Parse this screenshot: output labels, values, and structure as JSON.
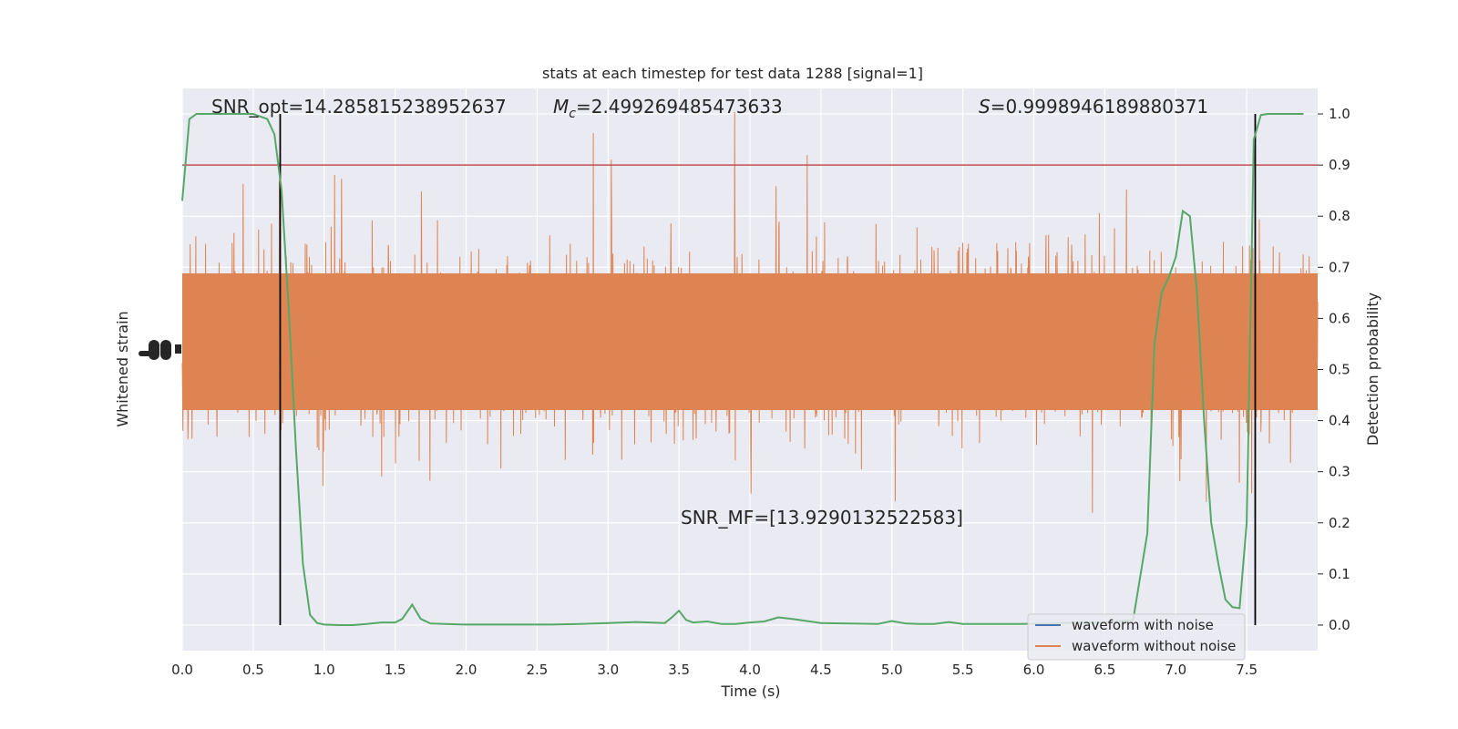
{
  "chart_data": {
    "type": "line",
    "title": "stats at each timestep for test data 1288 [signal=1]",
    "xlabel": "Time (s)",
    "ylabel_left": "Whitened strain",
    "ylabel_right": "Detection probability",
    "xlim": [
      0.0,
      8.0
    ],
    "ylim_right": [
      -0.05,
      1.05
    ],
    "x_ticks": [
      "0.0",
      "0.5",
      "1.0",
      "1.5",
      "2.0",
      "2.5",
      "3.0",
      "3.5",
      "4.0",
      "4.5",
      "5.0",
      "5.5",
      "6.0",
      "6.5",
      "7.0",
      "7.5"
    ],
    "x_tick_values": [
      0.0,
      0.5,
      1.0,
      1.5,
      2.0,
      2.5,
      3.0,
      3.5,
      4.0,
      4.5,
      5.0,
      5.5,
      6.0,
      6.5,
      7.0,
      7.5
    ],
    "y_ticks_right": [
      "0.0",
      "0.1",
      "0.2",
      "0.3",
      "0.4",
      "0.5",
      "0.6",
      "0.7",
      "0.8",
      "0.9",
      "1.0"
    ],
    "y_tick_values_right": [
      0.0,
      0.1,
      0.2,
      0.3,
      0.4,
      0.5,
      0.6,
      0.7,
      0.8,
      0.9,
      1.0
    ],
    "annotations": {
      "snr_opt": "SNR_opt=14.285815238952637",
      "mc": "=2.499269485473633",
      "s": "=0.9998946189880371",
      "snr_mf": "SNR_MF=[13.9290132522583]"
    },
    "threshold": 0.9,
    "vlines": [
      0.69,
      7.56
    ],
    "detection_probability": {
      "x": [
        0.0,
        0.05,
        0.1,
        0.2,
        0.3,
        0.4,
        0.5,
        0.6,
        0.65,
        0.7,
        0.75,
        0.8,
        0.85,
        0.9,
        0.95,
        1.0,
        1.1,
        1.2,
        1.3,
        1.4,
        1.5,
        1.55,
        1.62,
        1.68,
        1.75,
        1.85,
        2.0,
        2.2,
        2.4,
        2.6,
        2.8,
        3.0,
        3.2,
        3.4,
        3.45,
        3.5,
        3.55,
        3.6,
        3.7,
        3.8,
        3.9,
        4.0,
        4.1,
        4.2,
        4.3,
        4.4,
        4.5,
        4.7,
        4.9,
        5.0,
        5.1,
        5.2,
        5.3,
        5.4,
        5.5,
        5.7,
        5.9,
        6.1,
        6.3,
        6.5,
        6.7,
        6.8,
        6.85,
        6.9,
        6.95,
        7.0,
        7.05,
        7.1,
        7.15,
        7.2,
        7.25,
        7.3,
        7.35,
        7.4,
        7.45,
        7.5,
        7.55,
        7.6,
        7.65,
        7.7,
        7.8,
        7.9
      ],
      "y": [
        0.83,
        0.99,
        1.0,
        1.0,
        1.0,
        1.0,
        1.0,
        0.99,
        0.96,
        0.85,
        0.62,
        0.35,
        0.12,
        0.02,
        0.004,
        0.001,
        0.0,
        0.0,
        0.002,
        0.005,
        0.005,
        0.012,
        0.04,
        0.012,
        0.003,
        0.002,
        0.001,
        0.001,
        0.001,
        0.001,
        0.002,
        0.004,
        0.006,
        0.004,
        0.015,
        0.028,
        0.01,
        0.005,
        0.007,
        0.002,
        0.002,
        0.005,
        0.007,
        0.015,
        0.012,
        0.008,
        0.004,
        0.003,
        0.002,
        0.008,
        0.003,
        0.002,
        0.002,
        0.006,
        0.002,
        0.002,
        0.002,
        0.003,
        0.005,
        0.005,
        0.01,
        0.18,
        0.55,
        0.65,
        0.68,
        0.72,
        0.81,
        0.8,
        0.65,
        0.4,
        0.2,
        0.12,
        0.05,
        0.035,
        0.033,
        0.2,
        0.95,
        0.998,
        1.0,
        1.0,
        1.0,
        1.0
      ]
    },
    "series": [
      {
        "name": "waveform with noise",
        "color": "#4c72b0"
      },
      {
        "name": "waveform without noise",
        "color": "#dd8452"
      }
    ],
    "probability_color": "#55a868",
    "threshold_color": "#c44e52",
    "vline_color": "#000000",
    "background_color": "#eaeaf2",
    "grid": true,
    "legend_position": "lower-right"
  }
}
